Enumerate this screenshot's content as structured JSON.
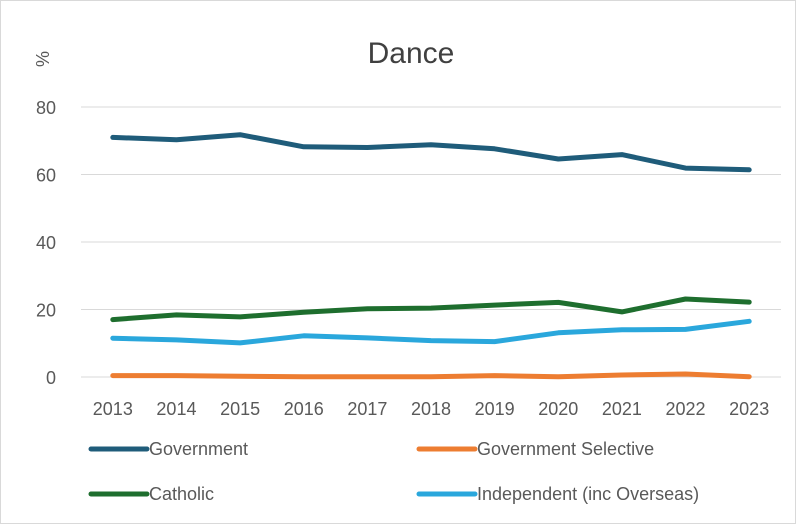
{
  "chart_data": {
    "type": "line",
    "title": "Dance",
    "ylabel": "%",
    "xlabel": "",
    "categories": [
      "2013",
      "2014",
      "2015",
      "2016",
      "2017",
      "2018",
      "2019",
      "2020",
      "2021",
      "2022",
      "2023"
    ],
    "ylim": [
      0,
      80
    ],
    "yticks": [
      0,
      20,
      40,
      60,
      80
    ],
    "grid": true,
    "legend_position": "bottom",
    "series": [
      {
        "name": "Government",
        "color": "#1f5c7a",
        "values": [
          71.0,
          70.3,
          71.8,
          68.2,
          68.0,
          68.8,
          67.6,
          64.6,
          65.9,
          61.9,
          61.4
        ]
      },
      {
        "name": "Government Selective",
        "color": "#ed7d31",
        "values": [
          0.4,
          0.4,
          0.2,
          0.1,
          0.1,
          0.1,
          0.4,
          0.1,
          0.6,
          0.9,
          0.1
        ]
      },
      {
        "name": "Catholic",
        "color": "#1e6e2e",
        "values": [
          17.0,
          18.4,
          17.8,
          19.2,
          20.2,
          20.4,
          21.3,
          22.1,
          19.3,
          23.1,
          22.2
        ]
      },
      {
        "name": "Independent (inc Overseas)",
        "color": "#2aa7dc",
        "values": [
          11.5,
          11.0,
          10.1,
          12.2,
          11.6,
          10.8,
          10.5,
          13.1,
          14.0,
          14.1,
          16.5
        ]
      }
    ]
  }
}
